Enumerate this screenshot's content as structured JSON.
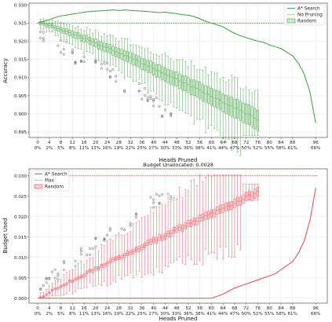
{
  "chart_data": [
    {
      "type": "line",
      "title": "",
      "xlabel": "Heads Pruned",
      "ylabel": "Accuracy",
      "xlim": [
        -3,
        100
      ],
      "ylim": [
        0.8935,
        0.9305
      ],
      "x_ticks": [
        0,
        4,
        8,
        12,
        16,
        20,
        24,
        28,
        32,
        36,
        40,
        44,
        48,
        52,
        56,
        60,
        64,
        68,
        72,
        76,
        80,
        84,
        88,
        96
      ],
      "x_ticks_secondary": [
        "0%",
        "2%",
        "5%",
        "8%",
        "11%",
        "13%",
        "16%",
        "19%",
        "22%",
        "25%",
        "27%",
        "30%",
        "33%",
        "36%",
        "38%",
        "41%",
        "44%",
        "47%",
        "50%",
        "52%",
        "55%",
        "58%",
        "61%",
        "66%"
      ],
      "y_ticks": [
        0.895,
        0.9,
        0.905,
        0.91,
        0.915,
        0.92,
        0.925,
        0.93
      ],
      "y_tick_labels": [
        "0.895",
        "0.900",
        "0.905",
        "0.910",
        "0.915",
        "0.920",
        "0.925",
        "0.930"
      ],
      "grid": true,
      "legend_position": "top-right",
      "legend": [
        "A* Search",
        "No Pruning",
        "Random"
      ],
      "colors": {
        "series": "#3a9e3a",
        "fill": "#cfe8cf"
      },
      "series": [
        {
          "name": "A* Search",
          "x": [
            0,
            2,
            4,
            6,
            8,
            10,
            12,
            14,
            16,
            18,
            20,
            22,
            24,
            26,
            28,
            30,
            32,
            34,
            36,
            38,
            40,
            42,
            44,
            46,
            48,
            50,
            52,
            54,
            56,
            58,
            60,
            62,
            64,
            66,
            68,
            70,
            72,
            74,
            76,
            78,
            80,
            82,
            84,
            86,
            88,
            90,
            92,
            94,
            96
          ],
          "y": [
            0.925,
            0.9255,
            0.926,
            0.9265,
            0.927,
            0.9272,
            0.9275,
            0.9277,
            0.928,
            0.9282,
            0.9283,
            0.9284,
            0.9285,
            0.9286,
            0.9285,
            0.9286,
            0.9285,
            0.9284,
            0.9283,
            0.9282,
            0.928,
            0.9279,
            0.928,
            0.9278,
            0.9276,
            0.9273,
            0.9272,
            0.9268,
            0.9262,
            0.9255,
            0.925,
            0.9245,
            0.924,
            0.923,
            0.9222,
            0.9215,
            0.921,
            0.9205,
            0.92,
            0.9197,
            0.919,
            0.9185,
            0.918,
            0.917,
            0.916,
            0.914,
            0.911,
            0.906,
            0.8975
          ]
        },
        {
          "name": "No Pruning",
          "y_const": 0.925
        }
      ],
      "box_series": {
        "name": "Random",
        "x_start": 1,
        "x_end": 76,
        "median_start": 0.925,
        "median_end": 0.8985,
        "q1_spread_start": 0.0005,
        "q1_spread_end": 0.003,
        "whisker_lo_end": 0.895,
        "whisker_hi_end": 0.9235
      }
    },
    {
      "type": "line",
      "title": "Budget Unallocated: 0.0028",
      "xlabel": "Heads Pruned",
      "ylabel": "Budget Used",
      "xlim": [
        -3,
        100
      ],
      "ylim": [
        -0.0012,
        0.0317
      ],
      "x_ticks": [
        0,
        4,
        8,
        12,
        16,
        20,
        24,
        28,
        32,
        36,
        40,
        44,
        48,
        52,
        56,
        60,
        64,
        68,
        72,
        76,
        80,
        84,
        88,
        96
      ],
      "x_ticks_secondary": [
        "0%",
        "2%",
        "5%",
        "8%",
        "11%",
        "13%",
        "16%",
        "19%",
        "22%",
        "25%",
        "27%",
        "30%",
        "33%",
        "36%",
        "38%",
        "41%",
        "44%",
        "47%",
        "50%",
        "52%",
        "55%",
        "58%",
        "61%",
        "66%"
      ],
      "y_ticks": [
        0.0,
        0.005,
        0.01,
        0.015,
        0.02,
        0.025,
        0.03
      ],
      "y_tick_labels": [
        "0.000",
        "0.005",
        "0.010",
        "0.015",
        "0.020",
        "0.025",
        "0.030"
      ],
      "grid": true,
      "legend_position": "top-left",
      "legend": [
        "A* Search",
        "Max",
        "Random"
      ],
      "colors": {
        "series": "#e8474f",
        "fill": "#f9d2d4"
      },
      "series": [
        {
          "name": "A* Search",
          "x": [
            0,
            4,
            8,
            12,
            16,
            20,
            24,
            28,
            32,
            36,
            40,
            44,
            48,
            52,
            56,
            60,
            62,
            64,
            66,
            68,
            70,
            72,
            74,
            76,
            78,
            80,
            82,
            84,
            86,
            88,
            90,
            92,
            94,
            96
          ],
          "y": [
            0,
            0,
            0,
            0,
            0,
            0,
            0,
            0,
            0,
            0,
            0,
            0,
            0,
            0,
            0,
            0,
            0.0005,
            0.001,
            0.0018,
            0.0025,
            0.003,
            0.0035,
            0.004,
            0.0045,
            0.005,
            0.0055,
            0.006,
            0.007,
            0.008,
            0.009,
            0.011,
            0.014,
            0.019,
            0.027
          ]
        },
        {
          "name": "Max",
          "y_const": 0.03
        }
      ],
      "box_series": {
        "name": "Random",
        "x_start": 1,
        "x_end": 76,
        "median_start": 0.0002,
        "median_end": 0.026,
        "q1_spread_start": 0.0002,
        "q1_spread_end": 0.0012,
        "whisker_lo_end": 0.024,
        "whisker_hi_end": 0.028
      }
    }
  ]
}
